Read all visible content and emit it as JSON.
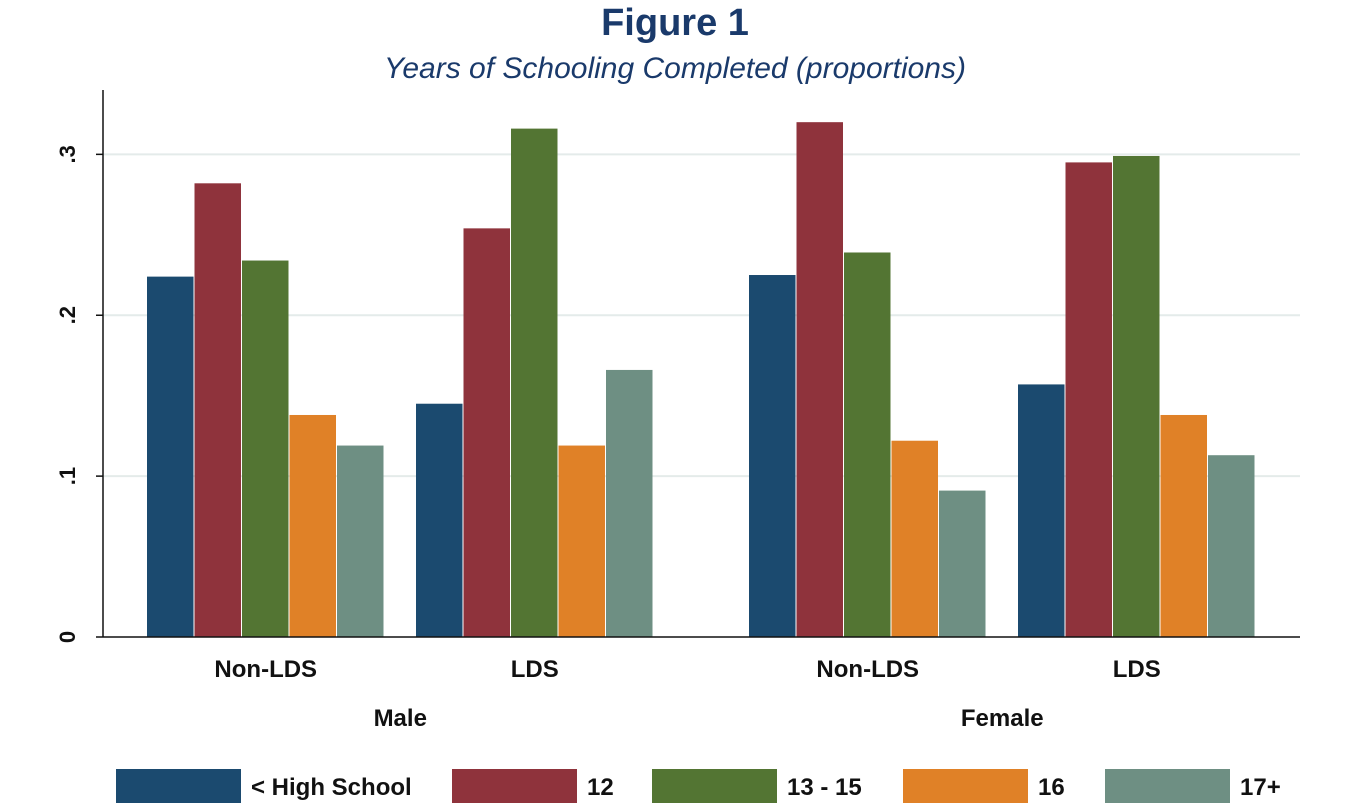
{
  "chart_data": {
    "type": "bar",
    "title": "Figure 1",
    "subtitle": "Years of Schooling Completed (proportions)",
    "ylim": [
      0,
      0.34
    ],
    "yticks": [
      {
        "value": 0,
        "label": "0"
      },
      {
        "value": 0.1,
        "label": ".1"
      },
      {
        "value": 0.2,
        "label": ".2"
      },
      {
        "value": 0.3,
        "label": ".3"
      }
    ],
    "grid": true,
    "legend_position": "bottom",
    "groups": [
      {
        "name": "Male",
        "categories": [
          "Non-LDS",
          "LDS"
        ]
      },
      {
        "name": "Female",
        "categories": [
          "Non-LDS",
          "LDS"
        ]
      }
    ],
    "categories": [
      "Non-LDS",
      "LDS",
      "Non-LDS",
      "LDS"
    ],
    "series": [
      {
        "name": "< High School",
        "color": "#1b4a6f",
        "values": [
          0.224,
          0.145,
          0.225,
          0.157
        ]
      },
      {
        "name": "12",
        "color": "#8f333c",
        "values": [
          0.282,
          0.254,
          0.32,
          0.295
        ]
      },
      {
        "name": "13 - 15",
        "color": "#537533",
        "values": [
          0.234,
          0.316,
          0.239,
          0.299
        ]
      },
      {
        "name": "16",
        "color": "#e08127",
        "values": [
          0.138,
          0.119,
          0.122,
          0.138
        ]
      },
      {
        "name": "17+",
        "color": "#6e8f83",
        "values": [
          0.119,
          0.166,
          0.091,
          0.113
        ]
      }
    ]
  }
}
